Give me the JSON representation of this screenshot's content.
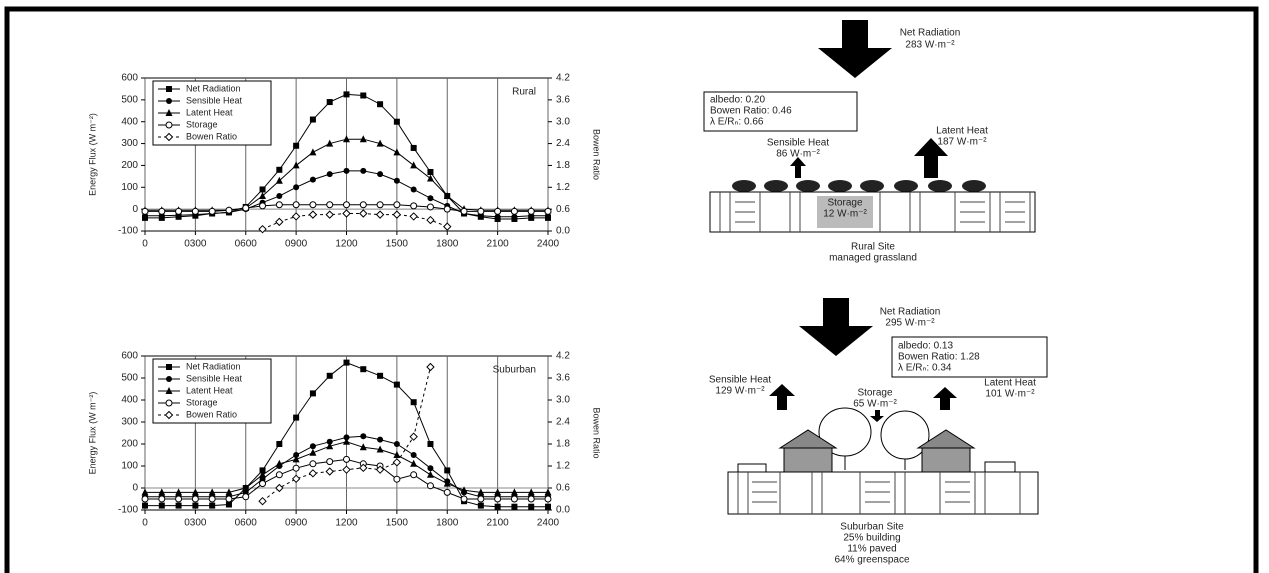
{
  "chart_data": [
    {
      "type": "line",
      "annotation": "Rural",
      "ylabel": "Energy Flux (W m⁻²)",
      "y2label": "Bowen Ratio",
      "x": [
        0,
        100,
        200,
        300,
        400,
        500,
        600,
        700,
        800,
        900,
        1000,
        1100,
        1200,
        1300,
        1400,
        1500,
        1600,
        1700,
        1800,
        1900,
        2000,
        2100,
        2200,
        2300,
        2400
      ],
      "xlim": [
        0,
        2400
      ],
      "xticks": [
        0,
        {
          "value": 300,
          "label": "0300"
        },
        {
          "value": 600,
          "label": "0600"
        },
        {
          "value": 900,
          "label": "0900"
        },
        1200,
        1500,
        1800,
        2100,
        2400
      ],
      "ylim": [
        -100,
        600
      ],
      "yticks": [
        -100,
        0,
        100,
        200,
        300,
        400,
        500,
        600
      ],
      "y2lim": [
        0,
        4.2
      ],
      "y2ticks": [
        {
          "value": 0,
          "label": "0.0"
        },
        0.6,
        1.2,
        1.8,
        2.4,
        {
          "value": 3,
          "label": "3.0"
        },
        3.6,
        4.2
      ],
      "grid": "x",
      "legend": "upper left",
      "series": [
        {
          "name": "Net Radiation",
          "color": "#000",
          "marker": "square",
          "values": [
            -40,
            -40,
            -35,
            -30,
            -20,
            -15,
            10,
            90,
            180,
            290,
            410,
            490,
            525,
            520,
            480,
            400,
            280,
            170,
            60,
            -20,
            -35,
            -45,
            -45,
            -40,
            -40
          ]
        },
        {
          "name": "Sensible Heat",
          "color": "#000",
          "marker": "circle",
          "values": [
            -30,
            -30,
            -28,
            -25,
            -20,
            -15,
            0,
            30,
            60,
            100,
            135,
            160,
            175,
            175,
            160,
            130,
            90,
            50,
            15,
            -20,
            -30,
            -35,
            -35,
            -30,
            -30
          ]
        },
        {
          "name": "Latent Heat",
          "color": "#000",
          "marker": "triangle",
          "values": [
            -5,
            -5,
            -5,
            -5,
            -5,
            -5,
            5,
            60,
            130,
            200,
            260,
            300,
            320,
            320,
            300,
            260,
            200,
            140,
            60,
            0,
            -5,
            -5,
            -5,
            -5,
            -5
          ]
        },
        {
          "name": "Storage",
          "color": "#000",
          "marker": "open-circle",
          "values": [
            -10,
            -10,
            -10,
            -10,
            -10,
            -5,
            5,
            15,
            20,
            20,
            20,
            20,
            20,
            20,
            20,
            20,
            15,
            10,
            0,
            -10,
            -10,
            -10,
            -10,
            -10,
            -10
          ]
        },
        {
          "name": "Bowen Ratio",
          "color": "#000",
          "marker": "open-diamond",
          "dashed": true,
          "axis": "y2",
          "values": [
            null,
            null,
            null,
            null,
            null,
            null,
            null,
            0.05,
            0.25,
            0.4,
            0.45,
            0.45,
            0.48,
            0.48,
            0.45,
            0.45,
            0.4,
            0.3,
            0.12,
            null,
            null,
            null,
            null,
            null,
            null
          ]
        }
      ]
    },
    {
      "type": "line",
      "annotation": "Suburban",
      "ylabel": "Energy Flux (W m⁻²)",
      "y2label": "Bowen Ratio",
      "x": [
        0,
        100,
        200,
        300,
        400,
        500,
        600,
        700,
        800,
        900,
        1000,
        1100,
        1200,
        1300,
        1400,
        1500,
        1600,
        1700,
        1800,
        1900,
        2000,
        2100,
        2200,
        2300,
        2400
      ],
      "xlim": [
        0,
        2400
      ],
      "xticks": [
        0,
        {
          "value": 300,
          "label": "0300"
        },
        {
          "value": 600,
          "label": "0600"
        },
        {
          "value": 900,
          "label": "0900"
        },
        1200,
        1500,
        1800,
        2100,
        2400
      ],
      "ylim": [
        -100,
        600
      ],
      "yticks": [
        -100,
        0,
        100,
        200,
        300,
        400,
        500,
        600
      ],
      "y2lim": [
        0,
        4.2
      ],
      "y2ticks": [
        {
          "value": 0,
          "label": "0.0"
        },
        0.6,
        1.2,
        1.8,
        2.4,
        {
          "value": 3,
          "label": "3.0"
        },
        3.6,
        4.2
      ],
      "grid": "x",
      "legend": "upper left",
      "series": [
        {
          "name": "Net Radiation",
          "color": "#000",
          "marker": "square",
          "values": [
            -80,
            -80,
            -80,
            -80,
            -80,
            -75,
            0,
            80,
            200,
            320,
            430,
            510,
            570,
            540,
            510,
            470,
            390,
            200,
            80,
            -60,
            -80,
            -85,
            -85,
            -85,
            -85
          ]
        },
        {
          "name": "Sensible Heat",
          "color": "#000",
          "marker": "circle",
          "values": [
            -40,
            -40,
            -40,
            -40,
            -40,
            -40,
            -20,
            40,
            100,
            150,
            190,
            210,
            230,
            235,
            220,
            200,
            150,
            90,
            30,
            -20,
            -40,
            -40,
            -40,
            -40,
            -40
          ]
        },
        {
          "name": "Latent Heat",
          "color": "#000",
          "marker": "triangle",
          "values": [
            -20,
            -20,
            -20,
            -20,
            -20,
            -20,
            0,
            60,
            110,
            130,
            160,
            190,
            210,
            185,
            175,
            150,
            110,
            60,
            20,
            -10,
            -20,
            -20,
            -20,
            -20,
            -20
          ]
        },
        {
          "name": "Storage",
          "color": "#000",
          "marker": "open-circle",
          "values": [
            -50,
            -50,
            -50,
            -50,
            -50,
            -50,
            -40,
            20,
            60,
            90,
            110,
            120,
            130,
            110,
            100,
            40,
            60,
            10,
            -20,
            -50,
            -50,
            -50,
            -50,
            -50,
            -50
          ]
        },
        {
          "name": "Bowen Ratio",
          "color": "#000",
          "marker": "open-diamond",
          "dashed": true,
          "axis": "y2",
          "values": [
            null,
            null,
            null,
            null,
            null,
            null,
            null,
            0.24,
            0.6,
            0.85,
            1.0,
            1.05,
            1.1,
            1.15,
            1.1,
            1.3,
            2.0,
            3.9,
            null,
            null,
            null,
            null,
            null,
            null,
            null
          ]
        }
      ]
    }
  ],
  "diagrams": [
    {
      "net_label": "Net Radiation",
      "net_value": "283 W·m⁻²",
      "box": [
        "albedo: 0.20",
        "Bowen Ratio: 0.46",
        "λ E/Rₙ: 0.66"
      ],
      "sensible_label": "Sensible Heat",
      "sensible_value": "86 W·m⁻²",
      "latent_label": "Latent Heat",
      "latent_value": "187 W·m⁻²",
      "storage_label": "Storage",
      "storage_value": "12 W·m⁻²",
      "site": [
        "Rural Site",
        "managed grassland"
      ]
    },
    {
      "net_label": "Net Radiation",
      "net_value": "295 W·m⁻²",
      "box": [
        "albedo: 0.13",
        "Bowen Ratio: 1.28",
        "λ E/Rₙ: 0.34"
      ],
      "sensible_label": "Sensible Heat",
      "sensible_value": "129 W·m⁻²",
      "latent_label": "Latent Heat",
      "latent_value": "101 W·m⁻²",
      "storage_label": "Storage",
      "storage_value": "65 W·m⁻²",
      "site": [
        "Suburban Site",
        "25% building",
        "11% paved",
        "64% greenspace"
      ]
    }
  ]
}
